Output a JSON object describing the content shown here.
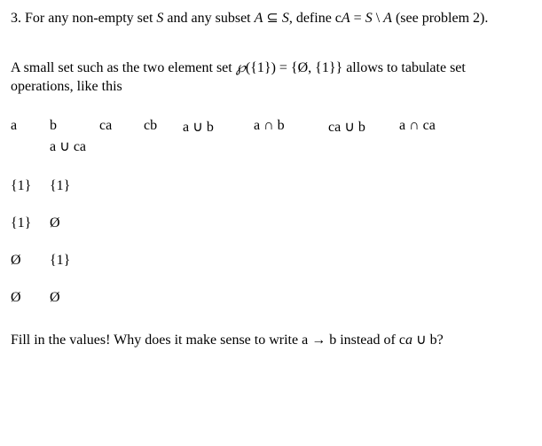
{
  "problem": {
    "number": "3.",
    "statement_part1": "For any non-empty set ",
    "S": "S",
    "statement_part2": " and any subset ",
    "A": "A",
    "subset": " ⊆ ",
    "S2": "S",
    "statement_part3": ", define c",
    "A2": "A",
    "eq": " = ",
    "S3": "S",
    "setminus": " \\ ",
    "A3": "A",
    "see": " (see problem 2)."
  },
  "intro": {
    "part1": "A small set such as the two element set ",
    "wp": "℘",
    "arg": "({1}) = {Ø, {1}} allows to tabulate set operations, like this"
  },
  "headers": {
    "a": "a",
    "b": "b",
    "ca": "ca",
    "cb": "cb",
    "aub": "a ∪ b",
    "anb": "a ∩ b",
    "caub": "ca ∪ b",
    "anca": "a ∩ ca",
    "auca": "a ∪ ca"
  },
  "rows": [
    {
      "a": "{1}",
      "b": "{1}"
    },
    {
      "a": "{1}",
      "b": "Ø"
    },
    {
      "a": "Ø",
      "b": "{1}"
    },
    {
      "a": "Ø",
      "b": "Ø"
    }
  ],
  "footer": {
    "part1": "Fill in the values! Why does it make sense to write a → b instead of c",
    "a": "a",
    "part2": " ∪ b?"
  }
}
